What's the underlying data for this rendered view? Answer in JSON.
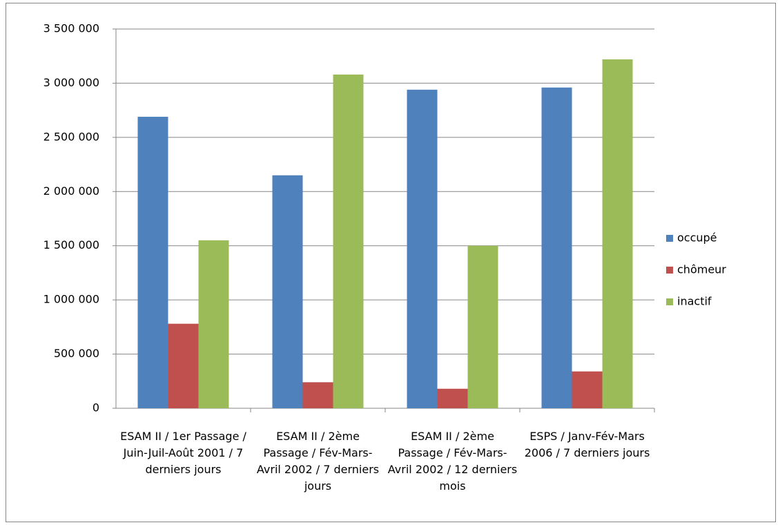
{
  "chart_data": {
    "type": "bar",
    "categories": [
      "ESAM II / 1er Passage / Juin-Juil-Août 2001 / 7 derniers jours",
      "ESAM II / 2ème Passage / Fév-Mars-Avril 2002 / 7 derniers jours",
      "ESAM II / 2ème Passage / Fév-Mars-Avril 2002 / 12 derniers mois",
      "ESPS / Janv-Fév-Mars 2006 / 7 derniers jours"
    ],
    "series": [
      {
        "name": "occupé",
        "color": "#4f81bd",
        "values": [
          2690000,
          2150000,
          2940000,
          2960000
        ]
      },
      {
        "name": "chômeur",
        "color": "#c0504d",
        "values": [
          780000,
          240000,
          180000,
          340000
        ]
      },
      {
        "name": "inactif",
        "color": "#9bbb59",
        "values": [
          1550000,
          3080000,
          1500000,
          3220000
        ]
      }
    ],
    "ylim": [
      0,
      3500000
    ],
    "yticks": [
      0,
      {
        "value": 500000,
        "label": "500 000"
      },
      {
        "value": 1000000,
        "label": "1 000 000"
      },
      {
        "value": 1500000,
        "label": "1 500 000"
      },
      {
        "value": 2000000,
        "label": "2 000 000"
      },
      {
        "value": 2500000,
        "label": "2 500 000"
      },
      {
        "value": 3000000,
        "label": "3 000 000"
      },
      {
        "value": 3500000,
        "label": "3 500 000"
      }
    ],
    "grid": true,
    "legend": "right"
  }
}
